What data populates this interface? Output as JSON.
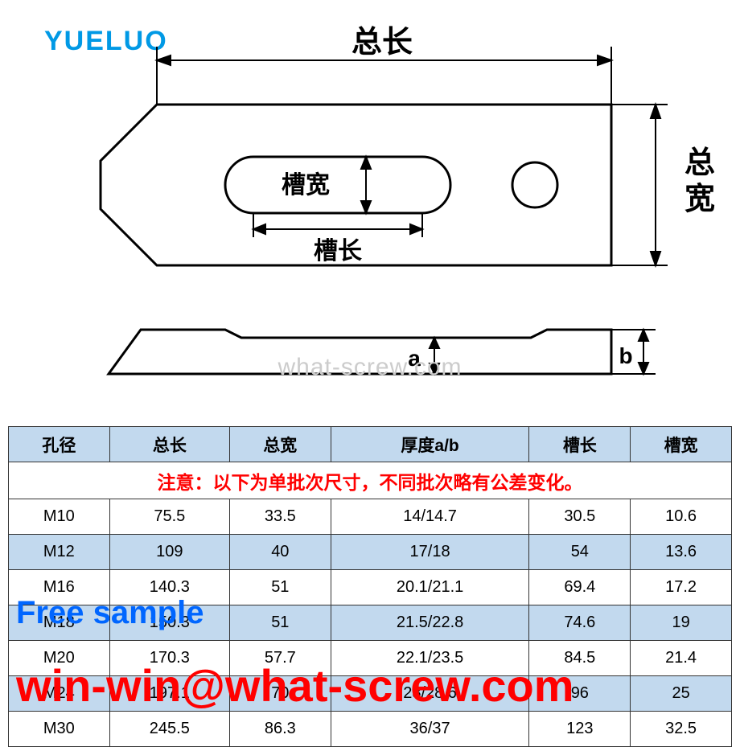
{
  "logo": "YUELUO",
  "watermark": "what-screw.com",
  "diagram": {
    "labels": {
      "total_length": "总长",
      "total_width": "总宽",
      "slot_width": "槽宽",
      "slot_length": "槽长",
      "a": "a",
      "b": "b"
    },
    "stroke_color": "#000000",
    "stroke_width": 3
  },
  "table": {
    "note": "注意：以下为单批次尺寸，不同批次略有公差变化。",
    "columns": [
      "孔径",
      "总长",
      "总宽",
      "厚度a/b",
      "槽长",
      "槽宽"
    ],
    "rows": [
      [
        "M10",
        "75.5",
        "33.5",
        "14/14.7",
        "30.5",
        "10.6"
      ],
      [
        "M12",
        "109",
        "40",
        "17/18",
        "54",
        "13.6"
      ],
      [
        "M16",
        "140.3",
        "51",
        "20.1/21.1",
        "69.4",
        "17.2"
      ],
      [
        "M18",
        "150.3",
        "51",
        "21.5/22.8",
        "74.6",
        "19"
      ],
      [
        "M20",
        "170.3",
        "57.7",
        "22.1/23.5",
        "84.5",
        "21.4"
      ],
      [
        "M24",
        "197.1",
        "70",
        "28/28.6",
        "96",
        "25"
      ],
      [
        "M30",
        "245.5",
        "86.3",
        "36/37",
        "123",
        "32.5"
      ]
    ],
    "header_bg": "#c2d9ee",
    "note_bg": "#ffff00",
    "note_color": "#ff0000",
    "alt_row_bg": "#c2d9ee",
    "border_color": "#333333"
  },
  "overlays": {
    "free_sample": "Free sample",
    "email": "win-win@what-screw.com",
    "free_color": "#0066ff",
    "email_color": "#ff0000"
  }
}
